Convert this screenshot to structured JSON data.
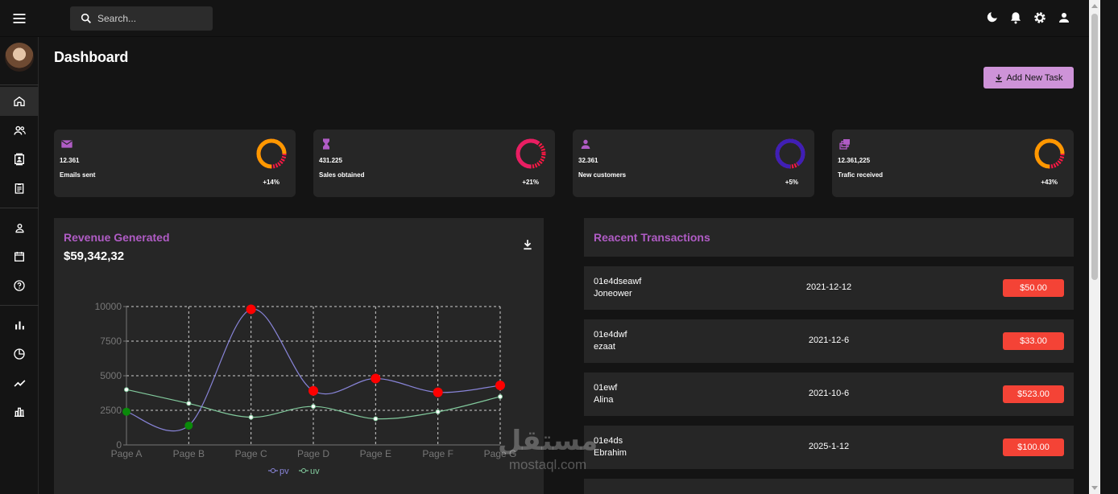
{
  "header": {
    "search_placeholder": "Search..."
  },
  "page": {
    "title": "Dashboard",
    "add_button_label": "Add New Task"
  },
  "stats": [
    {
      "value": "12.361",
      "label": "Emails sent",
      "change": "+14%",
      "progress": 0.75,
      "color": "#ff9800",
      "icon": "email-icon"
    },
    {
      "value": "431.225",
      "label": "Sales obtained",
      "change": "+21%",
      "progress": 0.6,
      "color": "#e91e63",
      "icon": "hourglass-icon"
    },
    {
      "value": "32.361",
      "label": "New customers",
      "change": "+5%",
      "progress": 0.9,
      "color": "#3f1fb5",
      "icon": "person-add-icon"
    },
    {
      "value": "12.361,225",
      "label": "Trafic received",
      "change": "+43%",
      "progress": 0.75,
      "color": "#ff9800",
      "icon": "traffic-icon"
    }
  ],
  "revenue": {
    "title": "Revenue Generated",
    "amount": "$59,342,32"
  },
  "chart_data": {
    "type": "line",
    "categories": [
      "Page A",
      "Page B",
      "Page C",
      "Page D",
      "Page E",
      "Page F",
      "Page G"
    ],
    "series": [
      {
        "name": "pv",
        "color": "#8884d8",
        "values": [
          2400,
          1398,
          9800,
          3908,
          4800,
          3800,
          4300
        ]
      },
      {
        "name": "uv",
        "color": "#82ca9d",
        "values": [
          4000,
          3000,
          2000,
          2780,
          1890,
          2390,
          3490
        ]
      }
    ],
    "yticks": [
      "0",
      "2500",
      "5000",
      "7500",
      "10000"
    ],
    "ylim": [
      0,
      10000
    ],
    "grid": true,
    "legend": "bottom"
  },
  "transactions": {
    "title": "Reacent Transactions",
    "items": [
      {
        "id": "01e4dseawf",
        "user": "Joneower",
        "date": "2021-12-12",
        "amount": "$50.00"
      },
      {
        "id": "01e4dwf",
        "user": "ezaat",
        "date": "2021-12-6",
        "amount": "$33.00"
      },
      {
        "id": "01ewf",
        "user": "Alina",
        "date": "2021-10-6",
        "amount": "$523.00"
      },
      {
        "id": "01e4ds",
        "user": "Ebrahim",
        "date": "2025-1-12",
        "amount": "$100.00"
      }
    ]
  },
  "watermark": {
    "arabic": "مستقل",
    "latin": "mostaql.com"
  },
  "colors": {
    "accent": "#b05cc5",
    "button": "#ce93d8",
    "amount_badge": "#f44336"
  }
}
